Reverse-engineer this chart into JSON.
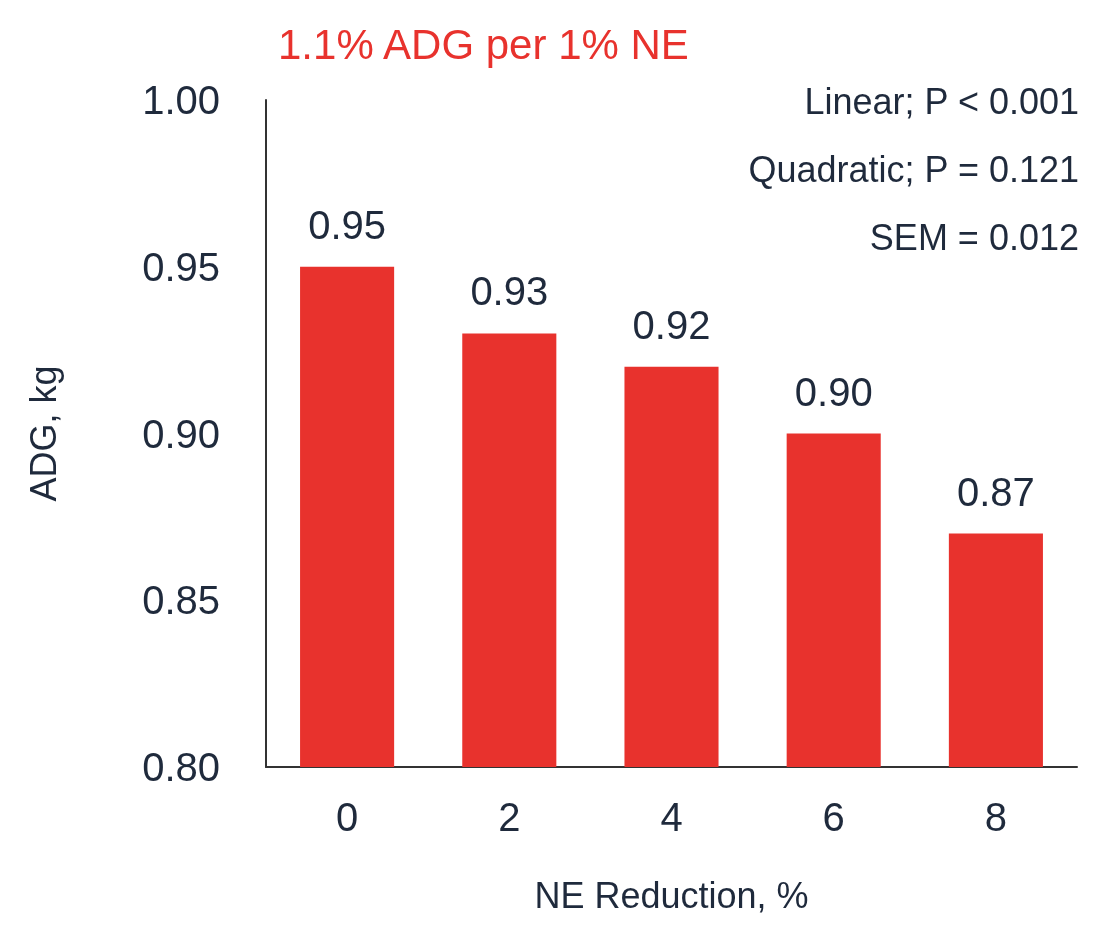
{
  "chart_data": {
    "type": "bar",
    "title": "1.1% ADG per 1% NE",
    "xlabel": "NE Reduction, %",
    "ylabel": "ADG, kg",
    "categories": [
      "0",
      "2",
      "4",
      "6",
      "8"
    ],
    "values": [
      0.95,
      0.93,
      0.92,
      0.9,
      0.87
    ],
    "color": "#e8322d",
    "value_labels": [
      "0.95",
      "0.93",
      "0.92",
      "0.90",
      "0.87"
    ],
    "ylim": [
      0.8,
      1.0
    ],
    "yticks": [
      {
        "value": 0.8,
        "label": "0.80"
      },
      {
        "value": 0.85,
        "label": "0.85"
      },
      {
        "value": 0.9,
        "label": "0.90"
      },
      {
        "value": 0.95,
        "label": "0.95"
      },
      {
        "value": 1.0,
        "label": "1.00"
      }
    ],
    "grid": false,
    "annotations": [
      "Linear; P < 0.001",
      "Quadratic; P = 0.121",
      "SEM = 0.012"
    ]
  }
}
